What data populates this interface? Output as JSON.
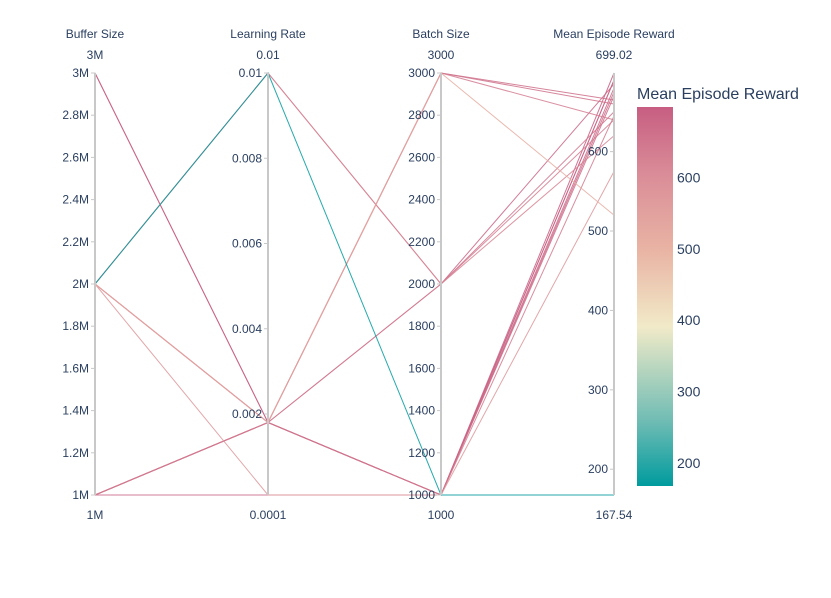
{
  "chart_data": {
    "type": "parallel_coordinates",
    "dimensions": [
      {
        "key": "buffer",
        "label": "Buffer Size",
        "range": [
          1000000,
          3000000
        ],
        "range_labels": {
          "max": "3M",
          "min": "1M"
        },
        "ticks": [
          {
            "value": 3000000,
            "label": "3M"
          },
          {
            "value": 2800000,
            "label": "2.8M"
          },
          {
            "value": 2600000,
            "label": "2.6M"
          },
          {
            "value": 2400000,
            "label": "2.4M"
          },
          {
            "value": 2200000,
            "label": "2.2M"
          },
          {
            "value": 2000000,
            "label": "2M"
          },
          {
            "value": 1800000,
            "label": "1.8M"
          },
          {
            "value": 1600000,
            "label": "1.6M"
          },
          {
            "value": 1400000,
            "label": "1.4M"
          },
          {
            "value": 1200000,
            "label": "1.2M"
          },
          {
            "value": 1000000,
            "label": "1M"
          }
        ]
      },
      {
        "key": "lr",
        "label": "Learning Rate",
        "range": [
          0.0001,
          0.01
        ],
        "range_labels": {
          "max": "0.01",
          "min": "0.0001"
        },
        "ticks": [
          {
            "value": 0.01,
            "label": "0.01"
          },
          {
            "value": 0.008,
            "label": "0.008"
          },
          {
            "value": 0.006,
            "label": "0.006"
          },
          {
            "value": 0.004,
            "label": "0.004"
          },
          {
            "value": 0.002,
            "label": "0.002"
          }
        ]
      },
      {
        "key": "batch",
        "label": "Batch Size",
        "range": [
          1000,
          3000
        ],
        "range_labels": {
          "max": "3000",
          "min": "1000"
        },
        "ticks": [
          {
            "value": 3000,
            "label": "3000"
          },
          {
            "value": 2800,
            "label": "2800"
          },
          {
            "value": 2600,
            "label": "2600"
          },
          {
            "value": 2400,
            "label": "2400"
          },
          {
            "value": 2200,
            "label": "2200"
          },
          {
            "value": 2000,
            "label": "2000"
          },
          {
            "value": 1800,
            "label": "1800"
          },
          {
            "value": 1600,
            "label": "1600"
          },
          {
            "value": 1400,
            "label": "1400"
          },
          {
            "value": 1200,
            "label": "1200"
          },
          {
            "value": 1000,
            "label": "1000"
          }
        ]
      },
      {
        "key": "reward",
        "label": "Mean Episode Reward",
        "range": [
          167.54,
          699.02
        ],
        "range_labels": {
          "max": "699.02",
          "min": "167.54"
        },
        "ticks": [
          {
            "value": 600,
            "label": "600"
          },
          {
            "value": 500,
            "label": "500"
          },
          {
            "value": 400,
            "label": "400"
          },
          {
            "value": 300,
            "label": "300"
          },
          {
            "value": 200,
            "label": "200"
          }
        ]
      }
    ],
    "runs": [
      {
        "buffer": 3000000,
        "lr": 0.0018,
        "batch": 1000,
        "reward": 699.02
      },
      {
        "buffer": 3000000,
        "lr": 0.0018,
        "batch": 1000,
        "reward": 690
      },
      {
        "buffer": 2000000,
        "lr": 0.01,
        "batch": 2000,
        "reward": 650
      },
      {
        "buffer": 2000000,
        "lr": 0.01,
        "batch": 2000,
        "reward": 620
      },
      {
        "buffer": 2000000,
        "lr": 0.0018,
        "batch": 3000,
        "reward": 640
      },
      {
        "buffer": 2000000,
        "lr": 0.0018,
        "batch": 3000,
        "reward": 520
      },
      {
        "buffer": 2000000,
        "lr": 0.0018,
        "batch": 1000,
        "reward": 690
      },
      {
        "buffer": 2000000,
        "lr": 0.0018,
        "batch": 1000,
        "reward": 670
      },
      {
        "buffer": 2000000,
        "lr": 0.0001,
        "batch": 1000,
        "reward": 575
      },
      {
        "buffer": 1000000,
        "lr": 0.0018,
        "batch": 2000,
        "reward": 685
      },
      {
        "buffer": 1000000,
        "lr": 0.0018,
        "batch": 2000,
        "reward": 640
      },
      {
        "buffer": 1000000,
        "lr": 0.0018,
        "batch": 3000,
        "reward": 665
      },
      {
        "buffer": 1000000,
        "lr": 0.0018,
        "batch": 3000,
        "reward": 660
      },
      {
        "buffer": 1000000,
        "lr": 0.0018,
        "batch": 1000,
        "reward": 675
      },
      {
        "buffer": 1000000,
        "lr": 0.0018,
        "batch": 1000,
        "reward": 645
      },
      {
        "buffer": 1000000,
        "lr": 0.0001,
        "batch": 1000,
        "reward": 680
      },
      {
        "buffer": 2000000,
        "lr": 0.01,
        "batch": 1000,
        "reward": 167.54
      }
    ],
    "colorbar": {
      "title": "Mean Episode Reward",
      "range": [
        167.54,
        699.02
      ],
      "ticks": [
        600,
        500,
        400,
        300,
        200
      ],
      "colorscale": [
        "#009b9e",
        "#42b7b9",
        "#a7d3d4",
        "#f1f1e6",
        "#e4c1d9",
        "#d691c1",
        "#c75dab"
      ]
    },
    "colors": {
      "axis": "#c8c8c8",
      "text": "#2a3f5f",
      "scale_low": "#009b9e",
      "scale_mid": "#f1eac8",
      "scale_high": "#c75e82"
    }
  }
}
